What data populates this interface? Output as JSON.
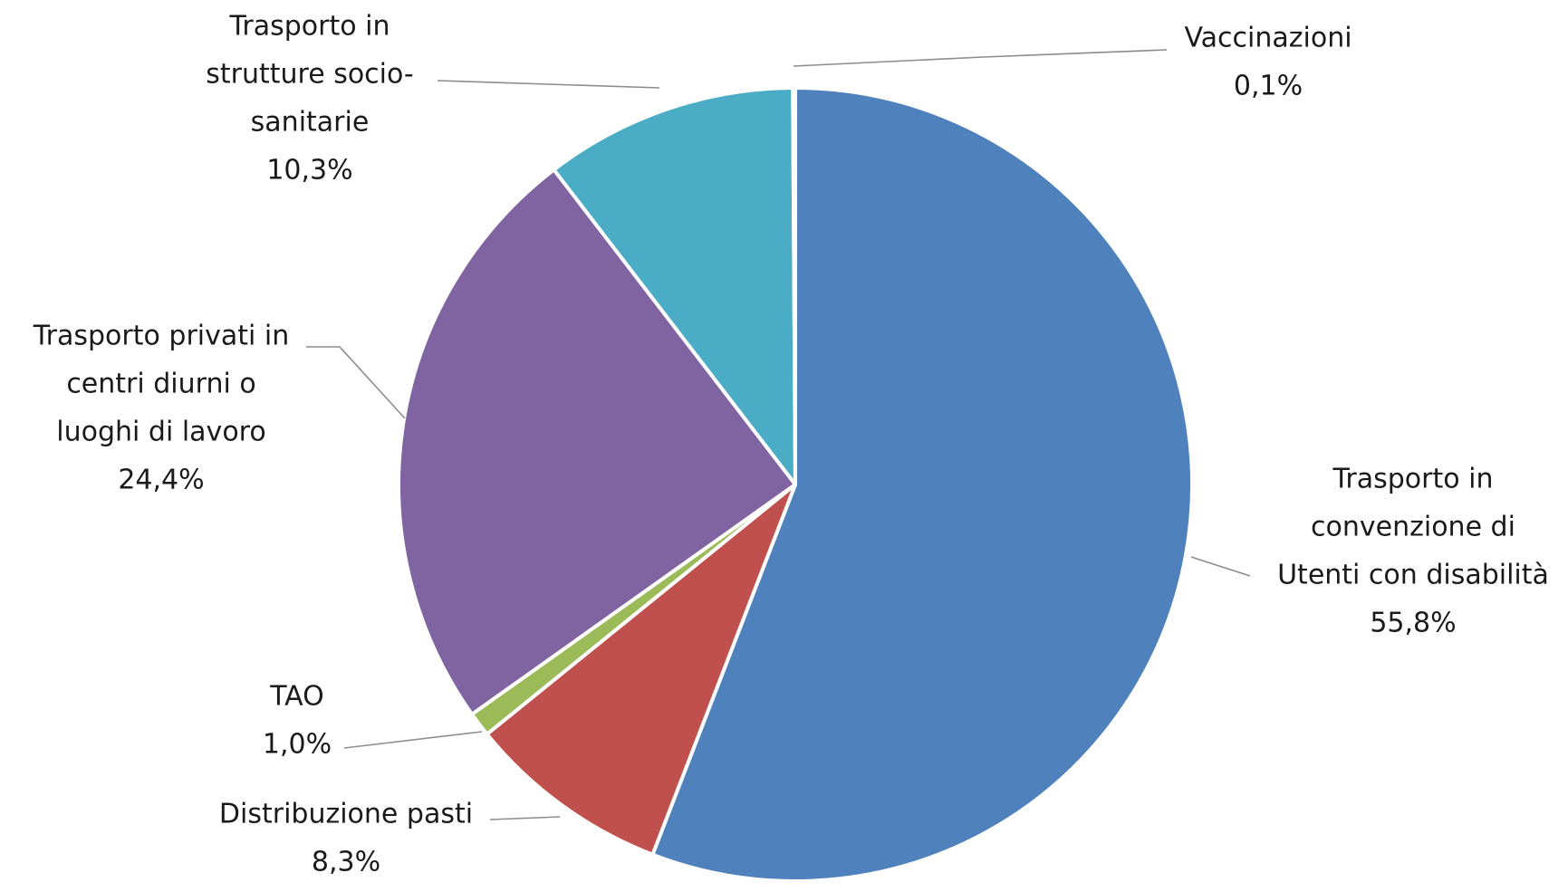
{
  "chart_data": {
    "type": "pie",
    "title": "",
    "slices": [
      {
        "label": [
          "Trasporto in",
          "convenzione di",
          "Utenti con disabilità"
        ],
        "value": 55.8,
        "value_label": "55,8%",
        "color": "#4f81bd"
      },
      {
        "label": [
          "Distribuzione pasti"
        ],
        "value": 8.3,
        "value_label": "8,3%",
        "color": "#c0504d"
      },
      {
        "label": [
          "TAO"
        ],
        "value": 1.0,
        "value_label": "1,0%",
        "color": "#9bbb59"
      },
      {
        "label": [
          "Trasporto privati in",
          "centri diurni o",
          "luoghi di lavoro"
        ],
        "value": 24.4,
        "value_label": "24,4%",
        "color": "#8064a2"
      },
      {
        "label": [
          "Trasporto in",
          "strutture socio-",
          "sanitarie"
        ],
        "value": 10.3,
        "value_label": "10,3%",
        "color": "#4bacc6"
      },
      {
        "label": [
          "Vaccinazioni"
        ],
        "value": 0.1,
        "value_label": "0,1%",
        "color": "#f79646"
      }
    ],
    "start_angle": "12 o'clock",
    "direction": "clockwise",
    "legend": "none",
    "data_labels": "outside with leader lines"
  }
}
